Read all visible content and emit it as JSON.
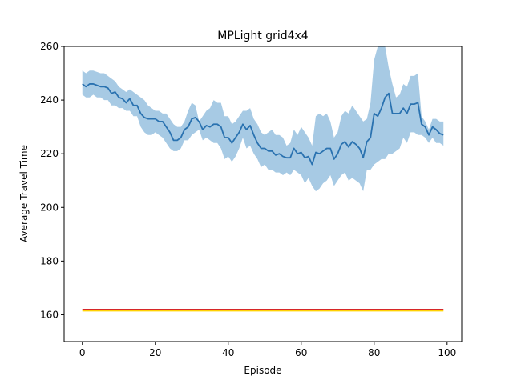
{
  "chart_data": {
    "type": "line",
    "title": "MPLight grid4x4",
    "xlabel": "Episode",
    "ylabel": "Average Travel Time",
    "xlim": [
      -5,
      104
    ],
    "ylim": [
      150,
      260
    ],
    "xticks": [
      0,
      20,
      40,
      60,
      80,
      100
    ],
    "yticks": [
      160,
      180,
      200,
      220,
      240,
      260
    ],
    "grid": false,
    "legend": "none",
    "colors": {
      "mean_line": "#2a72b0",
      "band_fill": "#a7cae4",
      "baseline_red": "#d62728",
      "baseline_orange": "#ff9f1a",
      "baseline_yellow": "#ffd700"
    },
    "series": [
      {
        "role": "mean",
        "x": [
          0,
          1,
          2,
          3,
          4,
          5,
          6,
          7,
          8,
          9,
          10,
          11,
          12,
          13,
          14,
          15,
          16,
          17,
          18,
          19,
          20,
          21,
          22,
          23,
          24,
          25,
          26,
          27,
          28,
          29,
          30,
          31,
          32,
          33,
          34,
          35,
          36,
          37,
          38,
          39,
          40,
          41,
          42,
          43,
          44,
          45,
          46,
          47,
          48,
          49,
          50,
          51,
          52,
          53,
          54,
          55,
          56,
          57,
          58,
          59,
          60,
          61,
          62,
          63,
          64,
          65,
          66,
          67,
          68,
          69,
          70,
          71,
          72,
          73,
          74,
          75,
          76,
          77,
          78,
          79,
          80,
          81,
          82,
          83,
          84,
          85,
          86,
          87,
          88,
          89,
          90,
          91,
          92,
          93,
          94,
          95,
          96,
          97,
          98,
          99
        ],
        "y": [
          246,
          245,
          246,
          246,
          245.5,
          245,
          245,
          244.5,
          242.5,
          243,
          241,
          240.5,
          239,
          240.5,
          238,
          238,
          235,
          233.5,
          233,
          233,
          233,
          232,
          232,
          230,
          228,
          225,
          225,
          226,
          229,
          230,
          233,
          233.5,
          232,
          229,
          230.5,
          230,
          231,
          231,
          230,
          226,
          226,
          224,
          226,
          228,
          231,
          229,
          230.5,
          227,
          224,
          222,
          222,
          221,
          221,
          219.5,
          220,
          219,
          218.5,
          218.5,
          222,
          220,
          220.5,
          218.5,
          219,
          216,
          220.5,
          220,
          221,
          222,
          222,
          218,
          220,
          223.5,
          224.5,
          222.5,
          224.5,
          223.5,
          222,
          218.5,
          224.5,
          226,
          235,
          234,
          237,
          241,
          242.5,
          235,
          235,
          235,
          237,
          235,
          238.5,
          238.5,
          239,
          231,
          230,
          227,
          230,
          229,
          227.5,
          227
        ]
      },
      {
        "role": "upper",
        "y": [
          251,
          250,
          251,
          251,
          250.5,
          250,
          250,
          249,
          248,
          247,
          245,
          244,
          243,
          244,
          243,
          242,
          241,
          240,
          238,
          237,
          236,
          236,
          235,
          235,
          233,
          231,
          230,
          230,
          232,
          236,
          239,
          238,
          232,
          234,
          236,
          237,
          240,
          239,
          239,
          234,
          234,
          231,
          232,
          234,
          236,
          236,
          237,
          233,
          231,
          228,
          227,
          228,
          229,
          227,
          227,
          226,
          223,
          224,
          229,
          227,
          230,
          228,
          226,
          223,
          234,
          235,
          234,
          235,
          232,
          226,
          228,
          234,
          236,
          235,
          238,
          236,
          234,
          232,
          233,
          239,
          255,
          262,
          266,
          269,
          252,
          246,
          241,
          242,
          246,
          245,
          249,
          249,
          250,
          234,
          232,
          229,
          233,
          233,
          232,
          232
        ]
      },
      {
        "role": "lower",
        "y": [
          242,
          241,
          241,
          242,
          241,
          241,
          240,
          240,
          238,
          238,
          237,
          237,
          236,
          236,
          234,
          234,
          230,
          228,
          227,
          227,
          228,
          227,
          226,
          224,
          222,
          221,
          221,
          222,
          225,
          225,
          227,
          228,
          229,
          225,
          226,
          225,
          224,
          224,
          222,
          218,
          219,
          217,
          219,
          222,
          226,
          222,
          223,
          220,
          218,
          215,
          216,
          214,
          214,
          213,
          213,
          212,
          213,
          212,
          214,
          213,
          212,
          209,
          211,
          208,
          206,
          207,
          209,
          210,
          212,
          208,
          210,
          212,
          213,
          210,
          211,
          210,
          209,
          206,
          214,
          214,
          216,
          217,
          218,
          218,
          220,
          220,
          221,
          222,
          226,
          224,
          228,
          228,
          227,
          227,
          226,
          224,
          226,
          224,
          224,
          223
        ]
      },
      {
        "role": "baseline-red",
        "x": [
          0,
          99
        ],
        "y": [
          162,
          162
        ]
      },
      {
        "role": "baseline-orange",
        "x": [
          0,
          99
        ],
        "y": [
          161.7,
          161.7
        ]
      },
      {
        "role": "baseline-yellow",
        "x": [
          0,
          99
        ],
        "y": [
          161.4,
          161.4
        ]
      }
    ]
  }
}
